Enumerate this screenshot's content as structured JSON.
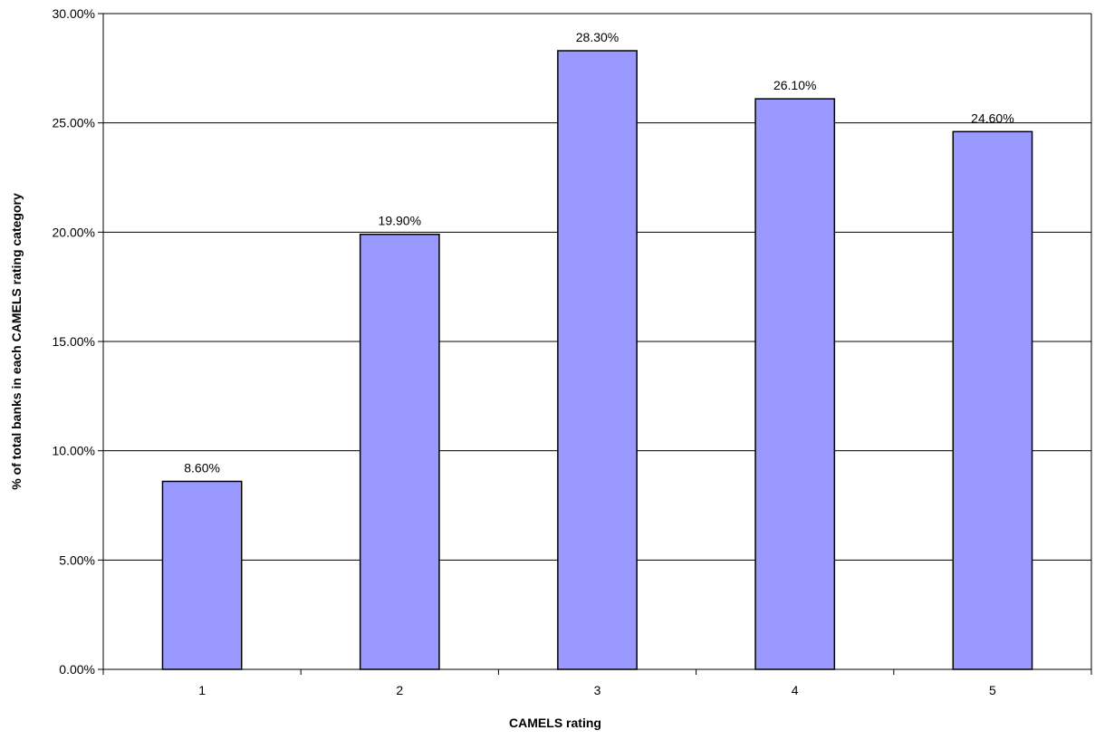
{
  "chart_data": {
    "type": "bar",
    "title": "",
    "xlabel": "CAMELS rating",
    "ylabel": "% of total banks in each CAMELS rating category",
    "categories": [
      "1",
      "2",
      "3",
      "4",
      "5"
    ],
    "values": [
      8.6,
      19.9,
      28.3,
      26.1,
      24.6
    ],
    "value_labels": [
      "8.60%",
      "19.90%",
      "28.30%",
      "26.10%",
      "24.60%"
    ],
    "ylim": [
      0,
      30
    ],
    "yticks": [
      0,
      5,
      10,
      15,
      20,
      25,
      30
    ],
    "ytick_labels": [
      "0.00%",
      "5.00%",
      "10.00%",
      "15.00%",
      "20.00%",
      "25.00%",
      "30.00%"
    ],
    "grid": true,
    "legend": "none",
    "colors": {
      "bar_fill": "#9999ff",
      "bar_stroke": "#000000",
      "grid": "#000000",
      "axis": "#000000"
    }
  }
}
